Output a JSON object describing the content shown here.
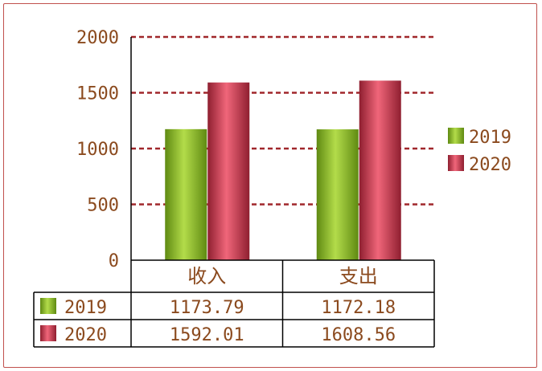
{
  "chart_data": {
    "type": "bar",
    "categories": [
      "收入",
      "支出"
    ],
    "series": [
      {
        "name": "2019",
        "values": [
          1173.79,
          1172.18
        ],
        "color": "#8fb832"
      },
      {
        "name": "2020",
        "values": [
          1592.01,
          1608.56
        ],
        "color": "#c83a4c"
      }
    ],
    "ylim": [
      0,
      2000
    ],
    "yticks": [
      "0",
      "500",
      "1000",
      "1500",
      "2000"
    ],
    "table_values": [
      [
        "1173.79",
        "1172.18"
      ],
      [
        "1592.01",
        "1608.56"
      ]
    ],
    "grid": true,
    "legend": "right",
    "gridline_color": "#a0272b",
    "text_color": "#8b4a1e"
  }
}
